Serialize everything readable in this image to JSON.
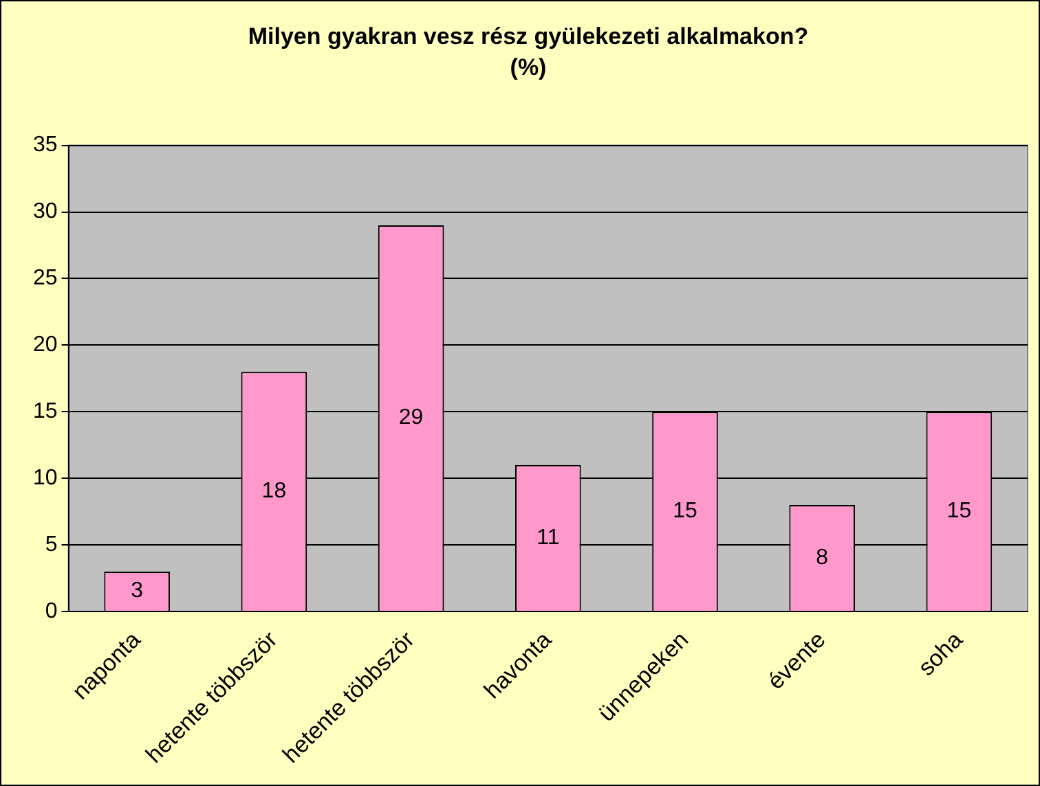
{
  "chart_data": {
    "type": "bar",
    "title": "Milyen gyakran vesz rész gyülekezeti alkalmakon?",
    "subtitle": "(%)",
    "categories": [
      "naponta",
      "hetente többször",
      "hetente többször",
      "havonta",
      "ünnepeken",
      "évente",
      "soha"
    ],
    "values": [
      3,
      18,
      29,
      11,
      15,
      8,
      15
    ],
    "color": "#ff99cc",
    "ylim": [
      0,
      35
    ],
    "yticks": [
      0,
      5,
      10,
      15,
      20,
      25,
      30,
      35
    ],
    "grid": "y",
    "legend": false,
    "data_labels": true
  }
}
